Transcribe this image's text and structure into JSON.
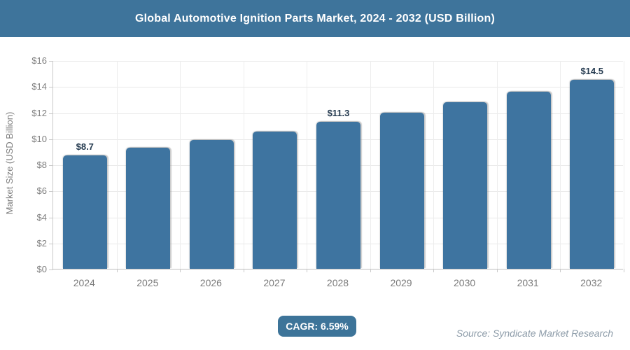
{
  "header": {
    "title": "Global Automotive Ignition Parts Market, 2024 - 2032 (USD Billion)"
  },
  "chart_data": {
    "type": "bar",
    "title": "Global Automotive Ignition Parts Market, 2024 - 2032 (USD Billion)",
    "categories": [
      "2024",
      "2025",
      "2026",
      "2027",
      "2028",
      "2029",
      "2030",
      "2031",
      "2032"
    ],
    "values": [
      8.7,
      9.3,
      9.9,
      10.5,
      11.3,
      12.0,
      12.8,
      13.6,
      14.5
    ],
    "data_labels": [
      "$8.7",
      null,
      null,
      null,
      "$11.3",
      null,
      null,
      null,
      "$14.5"
    ],
    "xlabel": "",
    "ylabel": "Market Size (USD Billion)",
    "ylim": [
      0,
      16
    ],
    "ytick_step": 2,
    "ytick_labels": [
      "$0",
      "$2",
      "$4",
      "$6",
      "$8",
      "$10",
      "$12",
      "$14",
      "$16"
    ],
    "grid": true,
    "legend": false,
    "bar_color": "#3E74A0"
  },
  "footer": {
    "cagr_label": "CAGR: 6.59%",
    "source": "Source: Syndicate Market Research"
  },
  "colors": {
    "header_bg": "#3E749B",
    "bar": "#3E74A0",
    "badge_bg": "#3D7499",
    "data_label_text": "#243A4F",
    "axis_text": "#7E7E7E",
    "gridline": "#E9E9E9",
    "source_text": "#8C9BA8"
  }
}
